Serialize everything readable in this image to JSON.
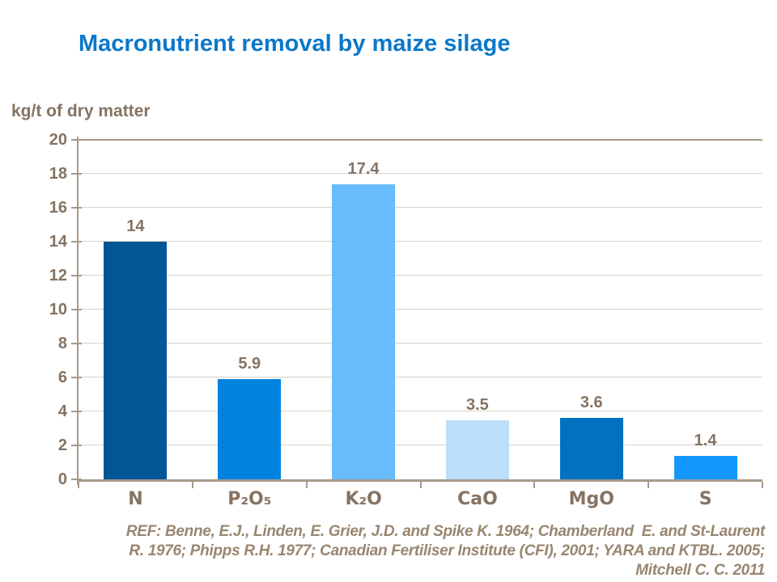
{
  "slide": {
    "title": "Macronutrient removal by maize silage",
    "y_axis_title": "kg/t of dry matter",
    "reference_lines": [
      "REF: Benne, E.J., Linden, E. Grier, J.D. and Spike K. 1964; Chamberland  E. and St-Laurent",
      "R. 1976; Phipps R.H. 1977; Canadian Fertiliser Institute (CFI), 2001; YARA and KTBL. 2005;",
      "Mitchell C. C. 2011"
    ]
  },
  "colors": {
    "title_text": "#0b78c9",
    "axis_text": "#857362",
    "axis_line": "#a79a8a",
    "gridline": "#d8d2ca",
    "reference_text": "#98866f",
    "bar_colors": [
      "#015696",
      "#0082de",
      "#69bcfb",
      "#bbdefa",
      "#0272c0",
      "#1598fc"
    ]
  },
  "chart_data": {
    "type": "bar",
    "title": "Macronutrient removal by maize silage",
    "categories": [
      "N",
      "P₂O₅",
      "K₂O",
      "CaO",
      "MgO",
      "S"
    ],
    "values": [
      14,
      5.9,
      17.4,
      3.5,
      3.6,
      1.4
    ],
    "value_labels": [
      "14",
      "5.9",
      "17.4",
      "3.5",
      "3.6",
      "1.4"
    ],
    "xlabel": "",
    "ylabel": "kg/t of dry matter",
    "ylim": [
      0,
      20
    ],
    "ytick_step": 2,
    "grid": true,
    "legend": false
  }
}
